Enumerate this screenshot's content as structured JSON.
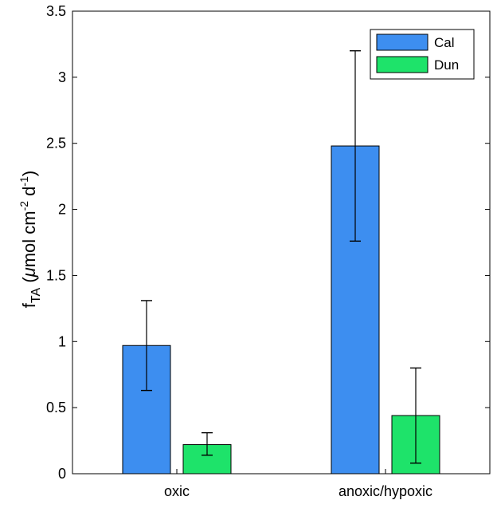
{
  "chart_data": {
    "type": "bar",
    "categories": [
      "oxic",
      "anoxic/hypoxic"
    ],
    "series": [
      {
        "name": "Cal",
        "color": "#3d8ef0",
        "values": [
          0.97,
          2.48
        ],
        "err_low": [
          0.63,
          1.76
        ],
        "err_high": [
          1.31,
          3.2
        ]
      },
      {
        "name": "Dun",
        "color": "#1ee36a",
        "values": [
          0.22,
          0.44
        ],
        "err_low": [
          0.14,
          0.08
        ],
        "err_high": [
          0.31,
          0.8
        ]
      }
    ],
    "ylim": [
      0,
      3.5
    ],
    "yticks": [
      0,
      0.5,
      1,
      1.5,
      2,
      2.5,
      3,
      3.5
    ],
    "ytick_labels": [
      "0",
      "0.5",
      "1",
      "1.5",
      "2",
      "2.5",
      "3",
      "3.5"
    ],
    "ylabel": {
      "f": "f",
      "sub": "TA",
      "open": " (",
      "mu": "μ",
      "mol_cm": "mol cm",
      "exp1": "-2",
      "d": " d",
      "exp2": "-1",
      "close": ")"
    },
    "xlabel": "",
    "legend": {
      "position": "top-right",
      "labels": [
        "Cal",
        "Dun"
      ]
    }
  }
}
